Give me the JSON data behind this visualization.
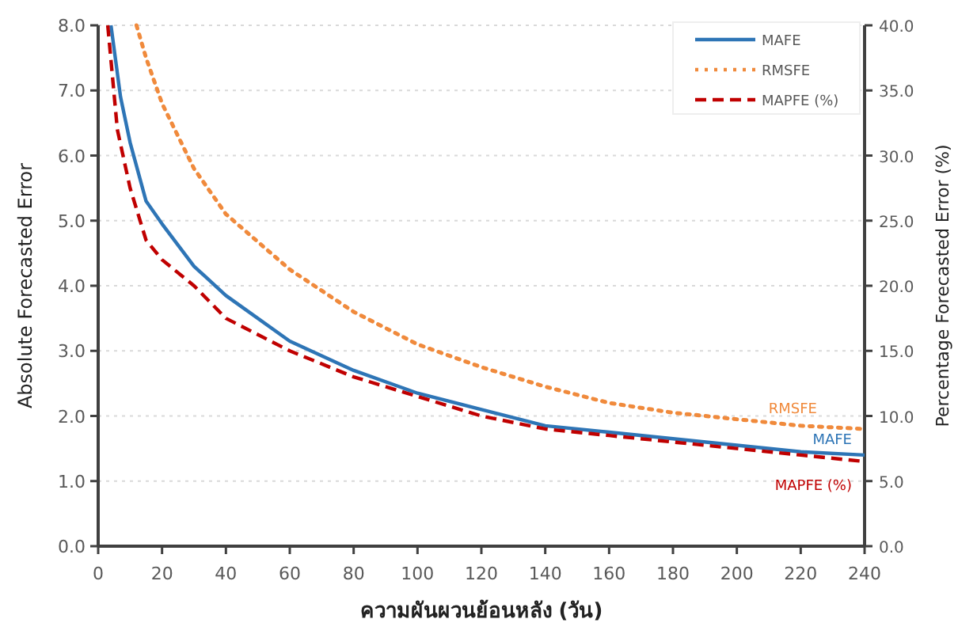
{
  "chart_data": {
    "type": "line",
    "xlabel": "ความผันผวนย้อนหลัง  (วัน)",
    "ylabel": "Absolute Forecasted Error",
    "y2label": "Percentage Forecasted Error (%)",
    "xlim": [
      0,
      240
    ],
    "xticks": [
      0,
      20,
      40,
      60,
      80,
      100,
      120,
      140,
      160,
      180,
      200,
      220,
      240
    ],
    "ylim": [
      0,
      8
    ],
    "yticks": [
      {
        "value": 0,
        "label": "0.0"
      },
      {
        "value": 1,
        "label": "1.0"
      },
      {
        "value": 2,
        "label": "2.0"
      },
      {
        "value": 3,
        "label": "3.0"
      },
      {
        "value": 4,
        "label": "4.0"
      },
      {
        "value": 5,
        "label": "5.0"
      },
      {
        "value": 6,
        "label": "6.0"
      },
      {
        "value": 7,
        "label": "7.0"
      },
      {
        "value": 8,
        "label": "8.0"
      }
    ],
    "y2lim": [
      0,
      40
    ],
    "y2ticks": [
      {
        "value": 0,
        "label": "0.0"
      },
      {
        "value": 5,
        "label": "5.0"
      },
      {
        "value": 10,
        "label": "10.0"
      },
      {
        "value": 15,
        "label": "15.0"
      },
      {
        "value": 20,
        "label": "20.0"
      },
      {
        "value": 25,
        "label": "25.0"
      },
      {
        "value": 30,
        "label": "30.0"
      },
      {
        "value": 35,
        "label": "35.0"
      },
      {
        "value": 40,
        "label": "40.0"
      }
    ],
    "grid": "y",
    "legend": "top right",
    "marker": "none",
    "series": [
      {
        "name": "MAFE",
        "color": "#2e75b6",
        "line_style": "solid",
        "x": [
          4,
          7,
          10,
          15,
          20,
          30,
          40,
          60,
          80,
          100,
          120,
          140,
          160,
          180,
          200,
          220,
          240
        ],
        "values": [
          8,
          6.9,
          6.2,
          5.3,
          4.95,
          4.3,
          3.85,
          3.15,
          2.7,
          2.35,
          2.1,
          1.85,
          1.75,
          1.65,
          1.55,
          1.45,
          1.4
        ]
      },
      {
        "name": "RMSFE",
        "color": "#f08a3c",
        "line_style": "dotted",
        "x": [
          12,
          15,
          20,
          30,
          40,
          60,
          80,
          100,
          120,
          140,
          160,
          180,
          200,
          220,
          240
        ],
        "values": [
          8,
          7.5,
          6.8,
          5.8,
          5.1,
          4.25,
          3.6,
          3.1,
          2.75,
          2.45,
          2.2,
          2.05,
          1.95,
          1.85,
          1.8
        ]
      },
      {
        "name": "MAPFE (%)",
        "color": "#c00000",
        "line_style": "dashed",
        "axis": "y2",
        "x": [
          3,
          6,
          10,
          15,
          20,
          30,
          40,
          60,
          80,
          100,
          120,
          140,
          160,
          180,
          200,
          220,
          240
        ],
        "values": [
          40,
          32,
          27.5,
          23.5,
          22,
          20,
          17.5,
          15,
          13,
          11.5,
          10,
          9,
          8.5,
          8,
          7.5,
          7,
          6.5
        ]
      }
    ]
  }
}
